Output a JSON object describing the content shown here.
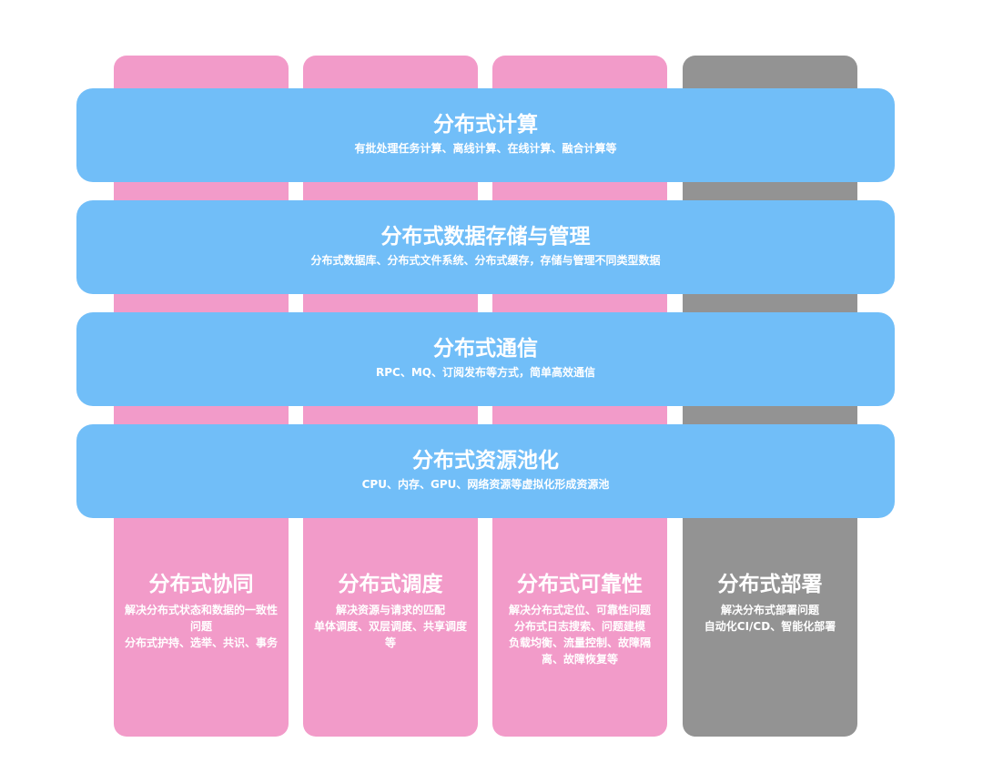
{
  "columns": [
    {
      "title": "分布式协同",
      "lines": [
        "解决分布式状态和数据的一致性问题",
        "分布式护持、选举、共识、事务"
      ]
    },
    {
      "title": "分布式调度",
      "lines": [
        "解决资源与请求的匹配",
        "单体调度、双层调度、共享调度等"
      ]
    },
    {
      "title": "分布式可靠性",
      "lines": [
        "解决分布式定位、可靠性问题",
        "分布式日志搜索、问题建模",
        "负载均衡、流量控制、故障隔离、故障恢复等"
      ]
    },
    {
      "title": "分布式部署",
      "lines": [
        "解决分布式部署问题",
        "自动化CI/CD、智能化部署"
      ]
    }
  ],
  "bands": [
    {
      "title": "分布式计算",
      "desc": "有批处理任务计算、离线计算、在线计算、融合计算等"
    },
    {
      "title": "分布式数据存储与管理",
      "desc": "分布式数据库、分布式文件系统、分布式缓存，存储与管理不同类型数据"
    },
    {
      "title": "分布式通信",
      "desc": "RPC、MQ、订阅发布等方式，简单高效通信"
    },
    {
      "title": "分布式资源池化",
      "desc": "CPU、内存、GPU、网络资源等虚拟化形成资源池"
    }
  ],
  "colors": {
    "band": "#71bef8",
    "column_pink": "#f29bc9",
    "column_gray": "#939393",
    "text": "#ffffff"
  }
}
